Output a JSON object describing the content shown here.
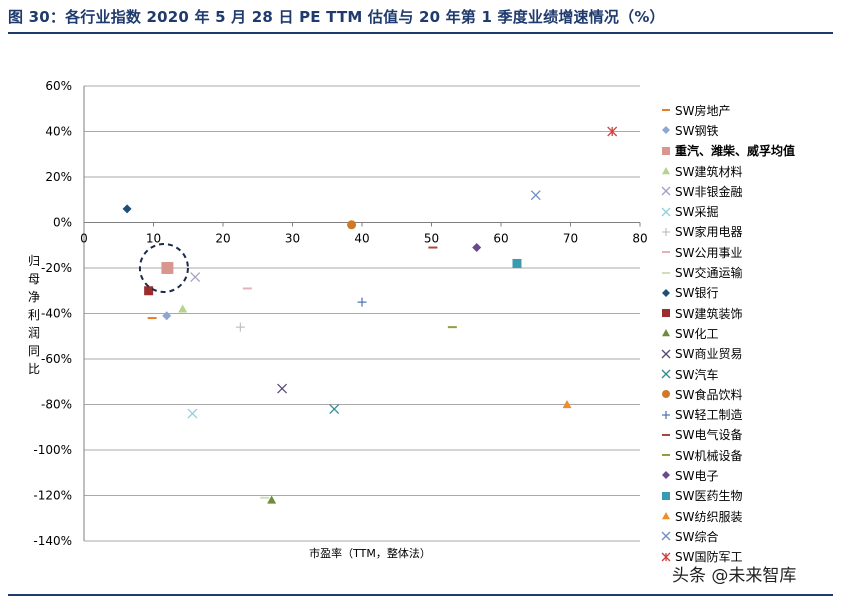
{
  "title": "图 30：各行业指数 2020 年 5 月 28 日 PE TTM 估值与 20 年第 1 季度业绩增速情况（%）",
  "watermark": "头条 @未来智库",
  "chart_data": {
    "type": "scatter",
    "xlabel": "市盈率（TTM，整体法）",
    "ylabel": "归母净利润同比",
    "xlim": [
      0,
      80
    ],
    "ylim": [
      -140,
      60
    ],
    "x_ticks": [
      0,
      10,
      20,
      30,
      40,
      50,
      60,
      70,
      80
    ],
    "y_ticks": [
      -140,
      -120,
      -100,
      -80,
      -60,
      -40,
      -20,
      0,
      20,
      40,
      60
    ],
    "y_tick_suffix": "%",
    "grid": "horizontal",
    "legend_position": "right",
    "highlight_circle": {
      "x": 11.5,
      "y": -20
    },
    "series": [
      {
        "name": "SW房地产",
        "marker": "dash",
        "color": "#e5802a",
        "x": 9.8,
        "y": -42
      },
      {
        "name": "SW钢铁",
        "marker": "diamond",
        "color": "#8ea6d2",
        "x": 11.9,
        "y": -41
      },
      {
        "name": "重汽、潍柴、威孚均值",
        "marker": "square",
        "color": "#d99590",
        "x": 12.0,
        "y": -20,
        "bold": true
      },
      {
        "name": "SW建筑材料",
        "marker": "triangle",
        "color": "#b5d38b",
        "x": 14.2,
        "y": -38
      },
      {
        "name": "SW非银金融",
        "marker": "x",
        "color": "#a8a0c4",
        "x": 16.0,
        "y": -24
      },
      {
        "name": "SW采掘",
        "marker": "x",
        "color": "#8fd0dc",
        "x": 15.6,
        "y": -84
      },
      {
        "name": "SW家用电器",
        "marker": "plus",
        "color": "#c0c0c0",
        "x": 22.5,
        "y": -46
      },
      {
        "name": "SW公用事业",
        "marker": "dash",
        "color": "#e6b0b8",
        "x": 23.5,
        "y": -29
      },
      {
        "name": "SW交通运输",
        "marker": "dash",
        "color": "#cfe0b8",
        "x": 26.0,
        "y": -121
      },
      {
        "name": "SW银行",
        "marker": "diamond",
        "color": "#1f4e79",
        "x": 6.2,
        "y": 6
      },
      {
        "name": "SW建筑装饰",
        "marker": "square",
        "color": "#9b2d2d",
        "x": 9.3,
        "y": -30
      },
      {
        "name": "SW化工",
        "marker": "triangle",
        "color": "#6e8c3a",
        "x": 27.0,
        "y": -122
      },
      {
        "name": "SW商业贸易",
        "marker": "x",
        "color": "#5a4a7a",
        "x": 28.5,
        "y": -73
      },
      {
        "name": "SW汽车",
        "marker": "x",
        "color": "#2f8c96",
        "x": 36.0,
        "y": -82
      },
      {
        "name": "SW食品饮料",
        "marker": "circle",
        "color": "#d0782a",
        "x": 38.5,
        "y": -1
      },
      {
        "name": "SW轻工制造",
        "marker": "plus",
        "color": "#4a72b0",
        "x": 40.0,
        "y": -35
      },
      {
        "name": "SW电气设备",
        "marker": "dash",
        "color": "#a84a3a",
        "x": 50.2,
        "y": -11
      },
      {
        "name": "SW机械设备",
        "marker": "dash",
        "color": "#8aa045",
        "x": 53.0,
        "y": -46
      },
      {
        "name": "SW电子",
        "marker": "diamond",
        "color": "#6a4a8c",
        "x": 56.5,
        "y": -11
      },
      {
        "name": "SW医药生物",
        "marker": "square",
        "color": "#3a9bb0",
        "x": 62.3,
        "y": -18
      },
      {
        "name": "SW纺织服装",
        "marker": "triangle",
        "color": "#f08c2a",
        "x": 69.5,
        "y": -80
      },
      {
        "name": "SW综合",
        "marker": "x",
        "color": "#6e8fc0",
        "x": 65.0,
        "y": 12
      },
      {
        "name": "SW国防军工",
        "marker": "asterisk",
        "color": "#d04040",
        "x": 76.0,
        "y": 40
      }
    ]
  }
}
